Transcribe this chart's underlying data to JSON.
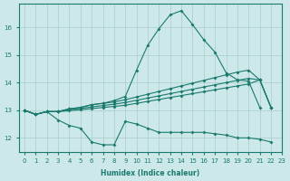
{
  "xlabel": "Humidex (Indice chaleur)",
  "x": [
    0,
    1,
    2,
    3,
    4,
    5,
    6,
    7,
    8,
    9,
    10,
    11,
    12,
    13,
    14,
    15,
    16,
    17,
    18,
    19,
    20,
    21,
    22,
    23
  ],
  "line_peak": [
    13.0,
    12.85,
    12.95,
    12.95,
    13.05,
    13.1,
    13.2,
    13.25,
    13.35,
    13.5,
    14.45,
    15.35,
    15.95,
    16.45,
    16.6,
    16.1,
    15.55,
    15.1,
    14.35,
    14.1,
    14.05,
    13.1,
    null,
    null
  ],
  "line_upper": [
    13.0,
    12.85,
    12.95,
    12.95,
    13.05,
    13.1,
    13.2,
    13.25,
    13.3,
    13.38,
    13.48,
    13.58,
    13.68,
    13.78,
    13.88,
    13.98,
    14.08,
    14.18,
    14.28,
    14.38,
    14.45,
    14.1,
    13.1,
    null
  ],
  "line_mid": [
    13.0,
    12.85,
    12.95,
    12.95,
    13.02,
    13.07,
    13.12,
    13.17,
    13.22,
    13.28,
    13.36,
    13.44,
    13.52,
    13.6,
    13.68,
    13.76,
    13.84,
    13.92,
    14.0,
    14.08,
    14.15,
    14.1,
    13.1,
    null
  ],
  "line_lower_band": [
    13.0,
    12.85,
    12.95,
    12.95,
    12.98,
    13.02,
    13.06,
    13.1,
    13.14,
    13.18,
    13.25,
    13.32,
    13.39,
    13.46,
    13.53,
    13.6,
    13.67,
    13.74,
    13.81,
    13.88,
    13.95,
    14.1,
    13.1,
    null
  ],
  "line_min": [
    13.0,
    12.85,
    12.95,
    12.65,
    12.45,
    12.35,
    11.85,
    11.75,
    11.75,
    12.6,
    12.5,
    12.35,
    12.2,
    12.2,
    12.2,
    12.2,
    12.2,
    12.15,
    12.1,
    12.0,
    12.0,
    11.95,
    11.85,
    null
  ],
  "bg_color": "#cce8e8",
  "grid_color": "#aacccc",
  "line_color": "#1a7a6e",
  "xlim": [
    -0.5,
    23
  ],
  "ylim": [
    11.5,
    16.85
  ],
  "yticks": [
    12,
    13,
    14,
    15,
    16
  ],
  "xticks": [
    0,
    1,
    2,
    3,
    4,
    5,
    6,
    7,
    8,
    9,
    10,
    11,
    12,
    13,
    14,
    15,
    16,
    17,
    18,
    19,
    20,
    21,
    22,
    23
  ]
}
